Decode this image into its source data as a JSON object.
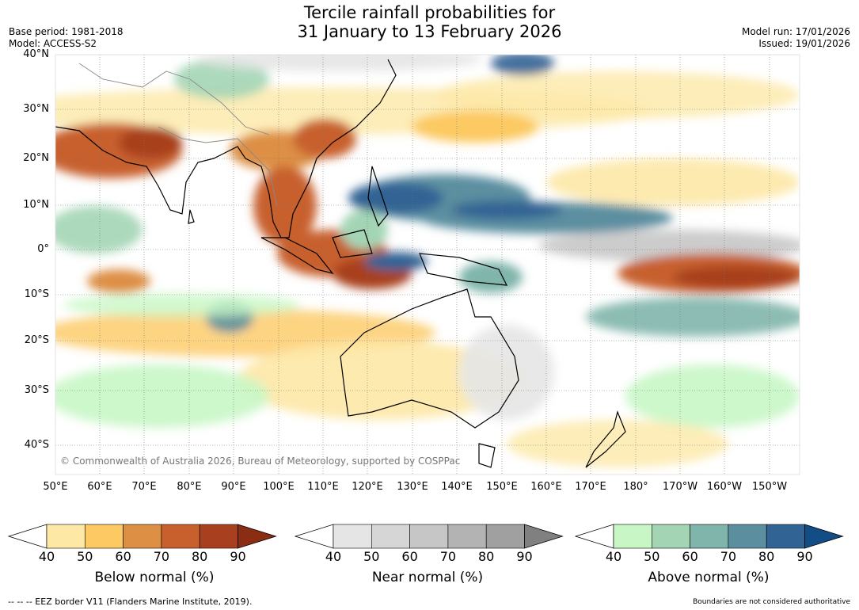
{
  "title": {
    "line1": "Tercile rainfall probabilities for",
    "line2": "31 January to 13 February 2026"
  },
  "meta": {
    "base_period": "Base period: 1981-2018",
    "model": "Model: ACCESS-S2",
    "model_run": "Model run: 17/01/2026",
    "issued": "Issued: 19/01/2026"
  },
  "map": {
    "lat_labels": [
      "40°N",
      "30°N",
      "20°N",
      "10°N",
      "0°",
      "10°S",
      "20°S",
      "30°S",
      "40°S"
    ],
    "lon_labels": [
      "50°E",
      "60°E",
      "70°E",
      "80°E",
      "90°E",
      "100°E",
      "110°E",
      "120°E",
      "130°E",
      "140°E",
      "150°E",
      "160°E",
      "170°E",
      "180°",
      "170°W",
      "160°W",
      "150°W"
    ],
    "copyright": "© Commonwealth of Australia 2026, Bureau of Meteorology, supported by COSPPac"
  },
  "legend": {
    "ticks": [
      "40",
      "50",
      "60",
      "70",
      "80",
      "90"
    ],
    "below": {
      "label": "Below normal (%)",
      "colors": [
        "#ffffff",
        "#fde8a6",
        "#fcc962",
        "#dd8f44",
        "#c8602e",
        "#a8401f",
        "#8b2d12"
      ]
    },
    "near": {
      "label": "Near normal (%)",
      "colors": [
        "#ffffff",
        "#e5e5e5",
        "#d6d6d6",
        "#c6c6c6",
        "#b3b3b3",
        "#a0a0a0",
        "#808080"
      ]
    },
    "above": {
      "label": "Above normal (%)",
      "colors": [
        "#ffffff",
        "#c8f7c5",
        "#a3d5b5",
        "#7fb5ab",
        "#5b8fa0",
        "#316394",
        "#124d86"
      ]
    }
  },
  "footer": {
    "eez": "--  --  -- EEZ border V11 (Flanders Marine Institute, 2019).",
    "note": "Boundaries are not considered authoritative"
  }
}
